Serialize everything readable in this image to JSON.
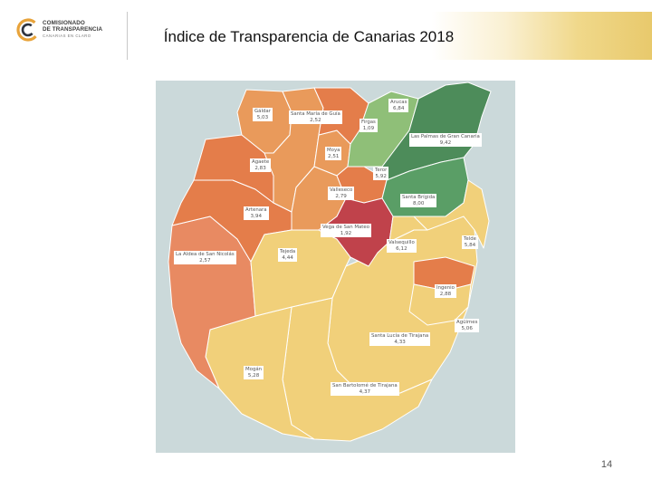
{
  "slide": {
    "title": "Índice de Transparencia de Canarias 2018",
    "page_number": "14"
  },
  "logo": {
    "line1": "COMISIONADO",
    "line2": "DE TRANSPARENCIA",
    "tagline": "CANARIAS EN CLARO",
    "colors": {
      "ring_outer": "#e8a33a",
      "ring_inner": "#2e3440",
      "text": "#3c3c3c"
    },
    "icon": "c-ring-logo"
  },
  "map": {
    "title": "Índice de Transparencia de Canarias 2018",
    "legend": "none",
    "colors": {
      "sea": "#cbd9da",
      "dark_green": "#4d8c5a",
      "green": "#5a9e66",
      "light_green": "#8fbf78",
      "light_yellow": "#f1d07a",
      "orange": "#e99a5b",
      "dark_orange": "#e47d4a",
      "salmon": "#e88a62",
      "red": "#c0424b",
      "border": "#ffffff"
    },
    "municipalities": [
      {
        "name": "Gáldar",
        "value": "5,03"
      },
      {
        "name": "Santa María de Guía",
        "value": "2,52"
      },
      {
        "name": "Arucas",
        "value": "6,84"
      },
      {
        "name": "Firgas",
        "value": "1,09"
      },
      {
        "name": "Las Palmas de Gran Canaria",
        "value": "9,42"
      },
      {
        "name": "Moya",
        "value": "2,51"
      },
      {
        "name": "Agaete",
        "value": "2,83"
      },
      {
        "name": "Teror",
        "value": "5,92"
      },
      {
        "name": "Valleseco",
        "value": "2,79"
      },
      {
        "name": "Santa Brígida",
        "value": "8,00"
      },
      {
        "name": "Artenara",
        "value": "3,94"
      },
      {
        "name": "Vega de San Mateo",
        "value": "1,92"
      },
      {
        "name": "Telde",
        "value": "5,84"
      },
      {
        "name": "Valsequillo",
        "value": "6,12"
      },
      {
        "name": "La Aldea de San Nicolás",
        "value": "2,57"
      },
      {
        "name": "Tejeda",
        "value": "4,44"
      },
      {
        "name": "Ingenio",
        "value": "2,88"
      },
      {
        "name": "Agüimes",
        "value": "5,06"
      },
      {
        "name": "Santa Lucía de Tirajana",
        "value": "4,33"
      },
      {
        "name": "Mogán",
        "value": "5,28"
      },
      {
        "name": "San Bartolomé de Tirajana",
        "value": "4,37"
      }
    ]
  }
}
